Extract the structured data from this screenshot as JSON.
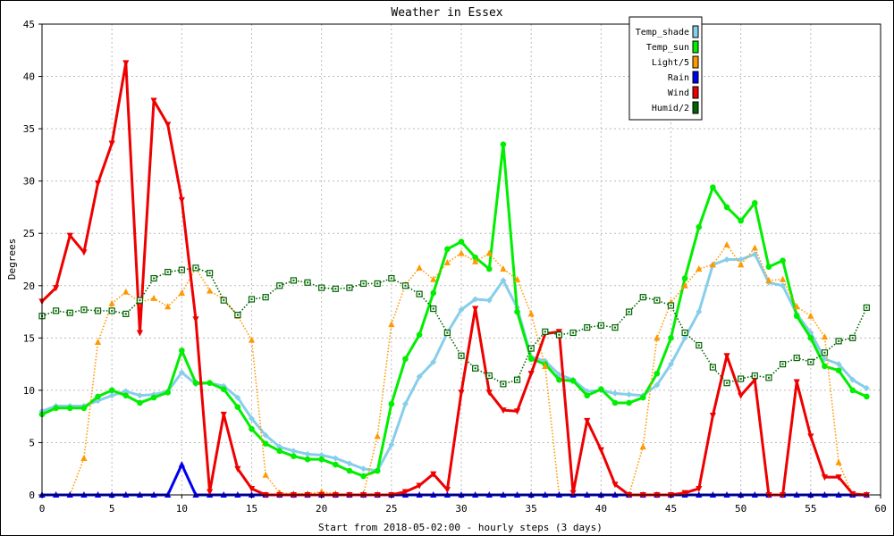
{
  "chart_data": {
    "type": "line",
    "title": "Weather in Essex",
    "xlabel": "Start from 2018-05-02:00 - hourly steps (3 days)",
    "ylabel": "Degrees",
    "xlim": [
      0,
      60
    ],
    "ylim": [
      0,
      45
    ],
    "xticks": [
      0,
      5,
      10,
      15,
      20,
      25,
      30,
      35,
      40,
      45,
      50,
      55,
      60
    ],
    "yticks": [
      0,
      5,
      10,
      15,
      20,
      25,
      30,
      35,
      40,
      45
    ],
    "grid": true,
    "legend_position": "top-right",
    "x": [
      0,
      1,
      2,
      3,
      4,
      5,
      6,
      7,
      8,
      9,
      10,
      11,
      12,
      13,
      14,
      15,
      16,
      17,
      18,
      19,
      20,
      21,
      22,
      23,
      24,
      25,
      26,
      27,
      28,
      29,
      30,
      31,
      32,
      33,
      34,
      35,
      36,
      37,
      38,
      39,
      40,
      41,
      42,
      43,
      44,
      45,
      46,
      47,
      48,
      49,
      50,
      51,
      52,
      53,
      54,
      55,
      56,
      57,
      58,
      59
    ],
    "series": [
      {
        "name": "Temp_shade",
        "color": "#87ceeb",
        "marker": "diamond",
        "line": "solid",
        "values": [
          8.0,
          8.5,
          8.5,
          8.5,
          9.0,
          9.5,
          9.9,
          9.5,
          9.6,
          9.9,
          11.7,
          10.6,
          10.7,
          10.4,
          9.3,
          7.3,
          5.7,
          4.6,
          4.2,
          3.9,
          3.8,
          3.5,
          3.0,
          2.5,
          2.3,
          4.8,
          8.7,
          11.3,
          12.7,
          15.5,
          17.7,
          18.7,
          18.6,
          20.5,
          17.9,
          13.2,
          12.8,
          11.5,
          11.0,
          9.9,
          10.0,
          9.7,
          9.6,
          9.5,
          10.5,
          12.5,
          15.0,
          17.5,
          22.0,
          22.5,
          22.5,
          23.0,
          20.3,
          20.0,
          17.3,
          15.5,
          13.0,
          12.5,
          11.0,
          10.2
        ]
      },
      {
        "name": "Temp_sun",
        "color": "#00ee00",
        "marker": "circle",
        "line": "solid",
        "values": [
          7.7,
          8.3,
          8.3,
          8.3,
          9.4,
          10.0,
          9.5,
          8.8,
          9.3,
          9.8,
          13.8,
          10.7,
          10.7,
          10.1,
          8.4,
          6.3,
          4.9,
          4.2,
          3.7,
          3.4,
          3.4,
          2.9,
          2.3,
          1.8,
          2.3,
          8.7,
          13.0,
          15.3,
          19.3,
          23.5,
          24.2,
          22.7,
          21.6,
          33.5,
          17.5,
          13.0,
          12.5,
          11.0,
          10.9,
          9.5,
          10.1,
          8.8,
          8.8,
          9.3,
          11.6,
          15.0,
          20.7,
          25.6,
          29.4,
          27.5,
          26.2,
          27.9,
          21.8,
          22.4,
          17.1,
          15.0,
          12.3,
          11.9,
          10.0,
          9.4
        ]
      },
      {
        "name": "Light/5",
        "color": "#ff9900",
        "marker": "triangle-up",
        "line": "dotted",
        "values": [
          0.0,
          0.0,
          0.0,
          3.5,
          14.6,
          18.3,
          19.4,
          18.4,
          18.8,
          18.0,
          19.3,
          21.7,
          19.5,
          18.7,
          17.1,
          14.8,
          1.9,
          0.2,
          0.1,
          0.1,
          0.3,
          0.1,
          0.0,
          0.1,
          5.6,
          16.3,
          20.1,
          21.7,
          20.6,
          22.2,
          23.1,
          22.3,
          23.1,
          21.6,
          20.6,
          17.3,
          12.3,
          0.0,
          0.0,
          0.0,
          0.0,
          0.0,
          0.0,
          4.6,
          15.0,
          18.4,
          20.0,
          21.6,
          22.0,
          23.9,
          22.0,
          23.6,
          20.5,
          20.6,
          18.0,
          17.1,
          15.1,
          3.1,
          0.0,
          0.0
        ]
      },
      {
        "name": "Rain",
        "color": "#0000ee",
        "marker": "triangle-up",
        "line": "solid",
        "values": [
          0,
          0,
          0,
          0,
          0,
          0,
          0,
          0,
          0,
          0,
          2.9,
          0,
          0,
          0,
          0,
          0,
          0,
          0,
          0,
          0,
          0,
          0,
          0,
          0,
          0,
          0,
          0,
          0,
          0,
          0,
          0,
          0,
          0,
          0,
          0,
          0,
          0,
          0,
          0,
          0,
          0,
          0,
          0,
          0,
          0,
          0,
          0,
          0,
          0,
          0,
          0,
          0,
          0,
          0,
          0,
          0,
          0,
          0,
          0,
          0
        ]
      },
      {
        "name": "Wind",
        "color": "#ee0000",
        "marker": "triangle-down",
        "line": "solid",
        "values": [
          18.5,
          19.8,
          24.8,
          23.2,
          29.8,
          33.6,
          41.3,
          15.5,
          37.7,
          35.4,
          28.2,
          16.8,
          0.3,
          7.7,
          2.5,
          0.6,
          0.0,
          0.0,
          0.0,
          0.0,
          0.0,
          0.0,
          0.0,
          0.0,
          0.0,
          0.0,
          0.3,
          0.9,
          2.0,
          0.5,
          9.8,
          17.8,
          9.8,
          8.1,
          8.0,
          11.6,
          15.4,
          15.6,
          0.2,
          7.1,
          4.3,
          1.0,
          0.0,
          0.0,
          0.0,
          0.0,
          0.2,
          0.6,
          7.6,
          13.3,
          9.5,
          11.0,
          0.0,
          0.0,
          10.8,
          5.6,
          1.7,
          1.7,
          0.1,
          0.0
        ]
      },
      {
        "name": "Humid/2",
        "color": "#006400",
        "marker": "square",
        "line": "dotted",
        "values": [
          17.1,
          17.6,
          17.4,
          17.7,
          17.6,
          17.6,
          17.3,
          18.6,
          20.7,
          21.3,
          21.5,
          21.7,
          21.2,
          18.6,
          17.2,
          18.7,
          18.9,
          20.0,
          20.5,
          20.3,
          19.8,
          19.7,
          19.8,
          20.2,
          20.2,
          20.7,
          20.0,
          19.2,
          17.8,
          15.5,
          13.3,
          12.1,
          11.4,
          10.6,
          11.0,
          14.0,
          15.6,
          15.3,
          15.5,
          16.0,
          16.2,
          16.0,
          17.5,
          18.9,
          18.6,
          18.1,
          15.5,
          14.3,
          12.2,
          10.7,
          11.1,
          11.4,
          11.2,
          12.5,
          13.1,
          12.7,
          13.6,
          14.7,
          15.0,
          17.9
        ]
      }
    ]
  }
}
